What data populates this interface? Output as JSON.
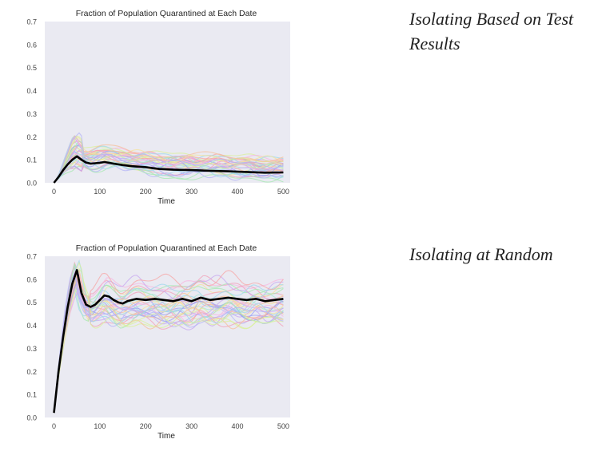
{
  "captions": {
    "top": "Isolating Based on Test Results",
    "bottom": "Isolating at Random"
  },
  "colors": {
    "plot_background": "#eaeaf2",
    "mean_line": "#000000",
    "run_palette": [
      "#9aa0f2",
      "#f2a0b8",
      "#f5e29a",
      "#a6e8b0",
      "#c8a8f0",
      "#f7b6e0",
      "#9fd8ec",
      "#f5bf9a",
      "#d9f09a",
      "#b4b4f7",
      "#f7a6a6",
      "#a8e6d6"
    ]
  },
  "chart_data": [
    {
      "type": "line",
      "title": "Fraction of Population Quarantined at Each Date",
      "xlabel": "Time",
      "ylabel": "",
      "xlim": [
        -20,
        515
      ],
      "ylim": [
        0,
        0.7
      ],
      "xticks": [
        0,
        100,
        200,
        300,
        400,
        500
      ],
      "yticks": [
        0.0,
        0.1,
        0.2,
        0.3,
        0.4,
        0.5,
        0.6,
        0.7
      ],
      "grid": false,
      "legend": "none",
      "series": [
        {
          "role": "mean",
          "x": [
            0,
            10,
            20,
            30,
            40,
            50,
            60,
            70,
            80,
            90,
            100,
            110,
            120,
            130,
            140,
            150,
            170,
            200,
            230,
            260,
            300,
            340,
            380,
            420,
            460,
            500
          ],
          "values": [
            0.0,
            0.025,
            0.055,
            0.08,
            0.1,
            0.115,
            0.1,
            0.088,
            0.083,
            0.085,
            0.087,
            0.09,
            0.087,
            0.083,
            0.08,
            0.077,
            0.072,
            0.068,
            0.06,
            0.057,
            0.055,
            0.052,
            0.05,
            0.047,
            0.044,
            0.045
          ]
        }
      ],
      "ensemble": {
        "count": 34,
        "peak_time": 40,
        "peak_range": [
          0.06,
          0.19
        ],
        "late_range": [
          0.02,
          0.11
        ]
      }
    },
    {
      "type": "line",
      "title": "Fraction of Population Quarantined at Each Date",
      "xlabel": "Time",
      "ylabel": "",
      "xlim": [
        -20,
        515
      ],
      "ylim": [
        0,
        0.7
      ],
      "xticks": [
        0,
        100,
        200,
        300,
        400,
        500
      ],
      "yticks": [
        0.0,
        0.1,
        0.2,
        0.3,
        0.4,
        0.5,
        0.6,
        0.7
      ],
      "grid": false,
      "legend": "none",
      "series": [
        {
          "role": "mean",
          "x": [
            0,
            10,
            20,
            30,
            40,
            50,
            60,
            70,
            80,
            90,
            100,
            110,
            120,
            130,
            140,
            150,
            160,
            170,
            180,
            200,
            220,
            240,
            260,
            280,
            300,
            320,
            340,
            360,
            380,
            400,
            420,
            440,
            460,
            480,
            500
          ],
          "values": [
            0.02,
            0.2,
            0.35,
            0.48,
            0.58,
            0.64,
            0.54,
            0.49,
            0.48,
            0.49,
            0.51,
            0.53,
            0.525,
            0.51,
            0.5,
            0.495,
            0.505,
            0.51,
            0.515,
            0.51,
            0.515,
            0.51,
            0.505,
            0.515,
            0.505,
            0.52,
            0.51,
            0.515,
            0.52,
            0.515,
            0.51,
            0.515,
            0.505,
            0.51,
            0.515
          ]
        }
      ],
      "ensemble": {
        "count": 34,
        "peak_time": 48,
        "peak_range": [
          0.58,
          0.66
        ],
        "late_range": [
          0.42,
          0.6
        ]
      }
    }
  ]
}
